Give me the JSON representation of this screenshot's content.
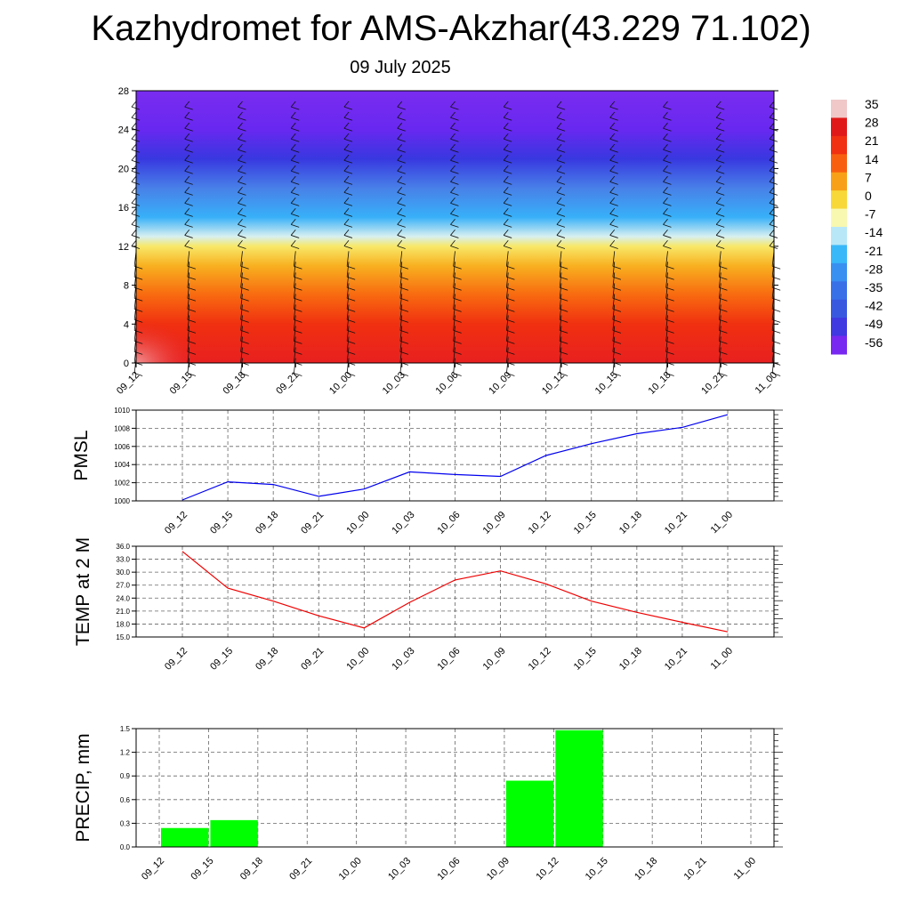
{
  "header": {
    "title": "Kazhydromet for AMS-Akzhar(43.229 71.102)",
    "date": "09 July 2025"
  },
  "chart_data": [
    {
      "type": "heatmap",
      "title": "",
      "x": [
        "09_12",
        "09_15",
        "09_18",
        "09_21",
        "10_00",
        "10_03",
        "10_06",
        "10_09",
        "10_12",
        "10_15",
        "10_18",
        "10_21",
        "11_00"
      ],
      "yticks": [
        0,
        4,
        8,
        12,
        16,
        20,
        24,
        28
      ],
      "ylim": [
        0,
        28
      ],
      "colorbar": {
        "labels": [
          "35",
          "28",
          "21",
          "14",
          "7",
          "0",
          "-7",
          "-14",
          "-21",
          "-28",
          "-35",
          "-42",
          "-49",
          "-56"
        ],
        "colors": [
          "#f0c8c8",
          "#e01818",
          "#f03010",
          "#f86010",
          "#f8a018",
          "#f8d838",
          "#f8f8b0",
          "#b8e8f8",
          "#38b8f8",
          "#3890f0",
          "#3870e8",
          "#3858e0",
          "#4038e0",
          "#7828f0"
        ]
      },
      "layers": [
        {
          "height": 0,
          "color": "#e82020"
        },
        {
          "height": 4,
          "color": "#f03010"
        },
        {
          "height": 7,
          "color": "#f86a10"
        },
        {
          "height": 10,
          "color": "#f8b020"
        },
        {
          "height": 12,
          "color": "#f8e868"
        },
        {
          "height": 13,
          "color": "#d8f0f0"
        },
        {
          "height": 15,
          "color": "#38b0f8"
        },
        {
          "height": 18,
          "color": "#4880e8"
        },
        {
          "height": 21,
          "color": "#3838e0"
        },
        {
          "height": 24,
          "color": "#6828f0"
        },
        {
          "height": 28,
          "color": "#7a2cf0"
        }
      ]
    },
    {
      "type": "line",
      "ylabel": "PMSL",
      "x": [
        "09_12",
        "09_15",
        "09_18",
        "09_21",
        "10_00",
        "10_03",
        "10_06",
        "10_09",
        "10_12",
        "10_15",
        "10_18",
        "10_21",
        "11_00"
      ],
      "ylim": [
        1000,
        1010
      ],
      "yticks": [
        "1000",
        "1002",
        "1004",
        "1006",
        "1008",
        "1010"
      ],
      "series": [
        {
          "values": [
            1000.1,
            1002.1,
            1001.8,
            1000.5,
            1001.3,
            1003.2,
            1002.9,
            1002.7,
            1005.0,
            1006.3,
            1007.4,
            1008.1,
            1009.5
          ],
          "color": "#0000ee"
        }
      ]
    },
    {
      "type": "line",
      "ylabel": "TEMP at 2 M",
      "x": [
        "09_12",
        "09_15",
        "09_18",
        "09_21",
        "10_00",
        "10_03",
        "10_06",
        "10_09",
        "10_12",
        "10_15",
        "10_18",
        "10_21",
        "11_00"
      ],
      "ylim": [
        15,
        36
      ],
      "yticks": [
        "15.0",
        "18.0",
        "21.0",
        "24.0",
        "27.0",
        "30.0",
        "33.0",
        "36.0"
      ],
      "series": [
        {
          "values": [
            34.8,
            26.3,
            23.3,
            19.9,
            17.1,
            23.0,
            28.2,
            30.3,
            27.3,
            23.3,
            20.7,
            18.4,
            16.2
          ],
          "color": "#ee0000"
        }
      ]
    },
    {
      "type": "bar",
      "ylabel": "PRECIP, mm",
      "x": [
        "09_12",
        "09_15",
        "09_18",
        "09_21",
        "10_00",
        "10_03",
        "10_06",
        "10_09",
        "10_12",
        "10_15",
        "10_18",
        "10_21",
        "11_00"
      ],
      "ylim": [
        0,
        1.5
      ],
      "yticks": [
        "0.0",
        "0.3",
        "0.6",
        "0.9",
        "1.2",
        "1.5"
      ],
      "values": [
        0,
        0.24,
        0.34,
        0,
        0,
        0,
        0,
        0,
        0.84,
        1.48,
        0,
        0,
        0
      ],
      "color": "#00ff00"
    }
  ]
}
